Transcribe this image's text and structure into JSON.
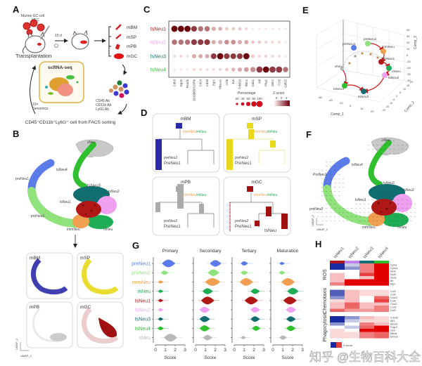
{
  "panel_letters": [
    "A",
    "B",
    "C",
    "D",
    "E",
    "F",
    "G",
    "H"
  ],
  "clusters": [
    {
      "name": "preNeu1",
      "color": "#5b7be8"
    },
    {
      "name": "preNeu2",
      "color": "#90e27c"
    },
    {
      "name": "immNeu",
      "color": "#f0a050"
    },
    {
      "name": "mNeu",
      "color": "#1fae55"
    },
    {
      "name": "tsNeu1",
      "color": "#b01818"
    },
    {
      "name": "tsNeu2",
      "color": "#f0a0f0"
    },
    {
      "name": "tsNeu3",
      "color": "#106e70"
    },
    {
      "name": "tsNeu4",
      "color": "#2fbf2f"
    },
    {
      "name": "sNeu",
      "color": "#b8b8b8"
    }
  ],
  "panel_a": {
    "cells_label": "Murine GC cell",
    "mfc": "MFC",
    "days": "10 d",
    "transplantation": "Transplantation",
    "tissues": [
      "mBM",
      "mSP",
      "mPB",
      "mGC"
    ],
    "scrna": "scRNA-seq",
    "genomics": [
      "10×",
      "Genomics"
    ],
    "antibodies": [
      "CD45 Ab",
      "CD11b Ab",
      "Ly6G Ab"
    ],
    "sorting": "CD45⁺CD11b⁺Ly6G⁺ cell from FACS sorting"
  },
  "panel_b": {
    "tissues": [
      {
        "name": "mBM",
        "color": "#2a2aa8"
      },
      {
        "name": "mSP",
        "color": "#e8d81a"
      },
      {
        "name": "mPB",
        "color": "#c8c8c8"
      },
      {
        "name": "mGC",
        "color": "#a01010"
      }
    ],
    "axis_x": "UMAP_1",
    "axis_y": "UMAP_2"
  },
  "chart_data": [
    {
      "type": "dot",
      "panel": "C",
      "rows": [
        "tsNeu1",
        "tsNeu2",
        "tsNeu3",
        "tsNeu4"
      ],
      "genes": [
        "Cd63",
        "Isg15",
        "Rsad2",
        "2010005H15Rik",
        "Cd14",
        "Cd2b",
        "Egr1",
        "Hba-a1",
        "Ccl6",
        "Jun",
        "Tnfsf10",
        "Ifitm1",
        "Gda1",
        "Mif",
        "Pkg1",
        "Odc1",
        "Ccl3",
        "Gdf15"
      ],
      "zscore": [
        [
          4,
          4,
          4,
          3,
          2,
          2,
          1,
          1,
          0.5,
          0.5,
          0.5,
          0.3,
          0,
          0,
          0,
          0,
          0,
          0
        ],
        [
          2,
          2,
          2,
          3,
          3,
          3,
          1,
          1,
          1.5,
          1.5,
          1,
          1,
          0.5,
          0.5,
          0.3,
          0.3,
          0.2,
          0
        ],
        [
          0.2,
          0.3,
          0.2,
          1,
          1,
          1,
          3,
          4,
          3,
          3,
          3,
          4,
          0.5,
          0.3,
          0.3,
          0.3,
          0.2,
          0
        ],
        [
          0,
          0,
          0,
          0.2,
          0.2,
          0.2,
          0.2,
          0.3,
          0.5,
          0.8,
          1,
          1.2,
          1.5,
          3,
          4,
          3,
          3,
          2
        ]
      ],
      "percentage": [
        [
          100,
          100,
          100,
          90,
          80,
          80,
          60,
          50,
          40,
          40,
          40,
          30,
          20,
          20,
          20,
          20,
          20,
          20
        ],
        [
          80,
          80,
          80,
          90,
          90,
          90,
          60,
          60,
          70,
          70,
          60,
          60,
          40,
          40,
          30,
          30,
          30,
          20
        ],
        [
          30,
          30,
          30,
          60,
          60,
          60,
          90,
          100,
          90,
          90,
          90,
          100,
          40,
          30,
          30,
          30,
          30,
          20
        ],
        [
          20,
          20,
          20,
          30,
          30,
          30,
          30,
          30,
          40,
          50,
          60,
          70,
          80,
          100,
          100,
          100,
          100,
          80
        ]
      ],
      "legend_percentage_title": "Percentage",
      "legend_percentage_ticks": [
        20,
        40,
        60,
        80,
        100
      ],
      "legend_z_title": "Z score",
      "legend_z_ticks": [
        0,
        2,
        4
      ]
    },
    {
      "type": "violin",
      "panel": "G",
      "rows": [
        "preNeu1",
        "preNeu2",
        "immNeu",
        "mNeu",
        "tsNeu1",
        "tsNeu2",
        "tsNeu3",
        "tsNeu4",
        "sNeu"
      ],
      "xlabel": "Score",
      "xticks": [
        0,
        1,
        2,
        3
      ],
      "xlim": [
        0,
        3
      ],
      "panels": [
        {
          "title": "Primary",
          "center": [
            1.3,
            0.9,
            0.5,
            0.5,
            0.5,
            0.5,
            0.5,
            0.5,
            1.5
          ],
          "spread": [
            0.5,
            0.2,
            0.1,
            0.1,
            0.1,
            0.1,
            0.1,
            0.15,
            0.5
          ]
        },
        {
          "title": "Secondary",
          "center": [
            2.0,
            1.8,
            1.7,
            1.2,
            1.2,
            0.9,
            0.9,
            0.9,
            1.2
          ],
          "spread": [
            0.4,
            0.4,
            0.6,
            0.35,
            0.5,
            0.35,
            0.35,
            0.35,
            0.3
          ]
        },
        {
          "title": "Tertiary",
          "center": [
            1.0,
            1.0,
            1.2,
            2.1,
            1.7,
            2.1,
            2.1,
            2.2,
            0.9
          ],
          "spread": [
            0.2,
            0.2,
            0.5,
            0.3,
            0.5,
            0.3,
            0.3,
            0.25,
            0.1
          ]
        },
        {
          "title": "Maturation",
          "center": [
            0.9,
            0.9,
            1.5,
            2.0,
            1.7,
            1.8,
            1.8,
            1.8,
            1.0
          ],
          "spread": [
            0.1,
            0.15,
            0.5,
            0.4,
            0.5,
            0.35,
            0.3,
            0.3,
            0.2
          ]
        }
      ]
    },
    {
      "type": "heatmap",
      "panel": "H",
      "columns": [
        "tsNeu1",
        "tsNeu2",
        "tsNeu3",
        "tsNeu4"
      ],
      "column_colors": [
        "#b01818",
        "#c080f0",
        "#106e70",
        "#2fbf2f"
      ],
      "groups": [
        {
          "name": "ROS",
          "genes": [
            "Cyba",
            "Cybc1",
            "Ncf2",
            "Ncf4",
            "Sod1",
            "Ier",
            "Mpo"
          ],
          "values": [
            [
              -2,
              -0.5,
              1,
              2
            ],
            [
              -2,
              -1,
              1,
              2
            ],
            [
              0,
              0,
              1,
              2
            ],
            [
              0.5,
              0,
              1.5,
              2
            ],
            [
              0.5,
              0,
              0.5,
              2
            ],
            [
              0.5,
              2,
              2,
              2
            ],
            [
              1,
              2,
              2,
              2
            ]
          ]
        },
        {
          "name": "Chemotaxis",
          "genes": [
            "Ccl3",
            "Ccl4",
            "Cxcr2",
            "Ccl6",
            "Cxcl2",
            "Ccrl1",
            "Ccl9"
          ],
          "values": [
            [
              -1.5,
              0.5,
              0.3,
              0.3
            ],
            [
              -1.5,
              0.5,
              0.3,
              0.3
            ],
            [
              -1,
              0.5,
              0,
              1.2
            ],
            [
              0.3,
              0.5,
              0,
              1.5
            ],
            [
              0.5,
              1.2,
              0.5,
              0.5
            ],
            [
              0.5,
              1.2,
              0.5,
              1
            ],
            [
              1.2,
              0.8,
              0.8,
              1
            ]
          ]
        },
        {
          "name": "Phagocytosis",
          "genes": [
            "Cdc42",
            "Alf1",
            "Abca1",
            "Fcgr3",
            "Gsn",
            "Mertk",
            "Elmo1"
          ],
          "values": [
            [
              -2,
              -1,
              0.5,
              0.3
            ],
            [
              -2,
              -0.5,
              0.3,
              0.3
            ],
            [
              -1,
              0,
              1,
              0.5
            ],
            [
              0,
              -0.5,
              1.2,
              2
            ],
            [
              0.3,
              0,
              2,
              2
            ],
            [
              0.3,
              0.3,
              1,
              1.2
            ],
            [
              0.3,
              0.3,
              1,
              1.2
            ]
          ]
        }
      ],
      "legend_title": "Z score",
      "range": [
        -2,
        2
      ]
    }
  ],
  "panel_d": {
    "tissues": [
      "mBM",
      "mSP",
      "mPB",
      "mGC"
    ],
    "tissue_colors": [
      "#2a2aa8",
      "#e8d81a",
      "#aaaaaa",
      "#a01010"
    ],
    "branch_label_a": "immNeu",
    "branch_label_b": "/mNeu",
    "pre2": "preNeu2",
    "pre1": "PreNeu1",
    "ts": "tsNeu"
  },
  "panel_e": {
    "axis_x": "Comp_1",
    "axis_y": "Comp_2",
    "axis_z": "Comp_3",
    "x_ticks": [
      "-30",
      "-20",
      "-10",
      "0",
      "10",
      "20"
    ],
    "z_ticks": [
      "40",
      "30",
      "20",
      "10",
      "0",
      "-10",
      "-20",
      "-30",
      "-40"
    ],
    "y_ticks": [
      "-20",
      "-15",
      "-10",
      "-5",
      "0",
      "5",
      "10",
      "15",
      "20"
    ],
    "points": [
      "preNeu1",
      "preNeu2",
      "immNeu",
      "tsNeu1",
      "mNeu",
      "tsNeu2",
      "tsNeu4",
      "tsNeu3",
      "sNeu"
    ]
  },
  "panel_f": {
    "labels": [
      "sNeu",
      "PreNeu1",
      "tsNeu4",
      "tsNeu3",
      "tsNeu2",
      "tsNeu1",
      "preNeu2",
      "immNeu",
      "mNeu"
    ],
    "axis_x": "UMAP_1",
    "axis_y": "UMAP_2"
  },
  "watermark": "知乎 @生物百科大全"
}
